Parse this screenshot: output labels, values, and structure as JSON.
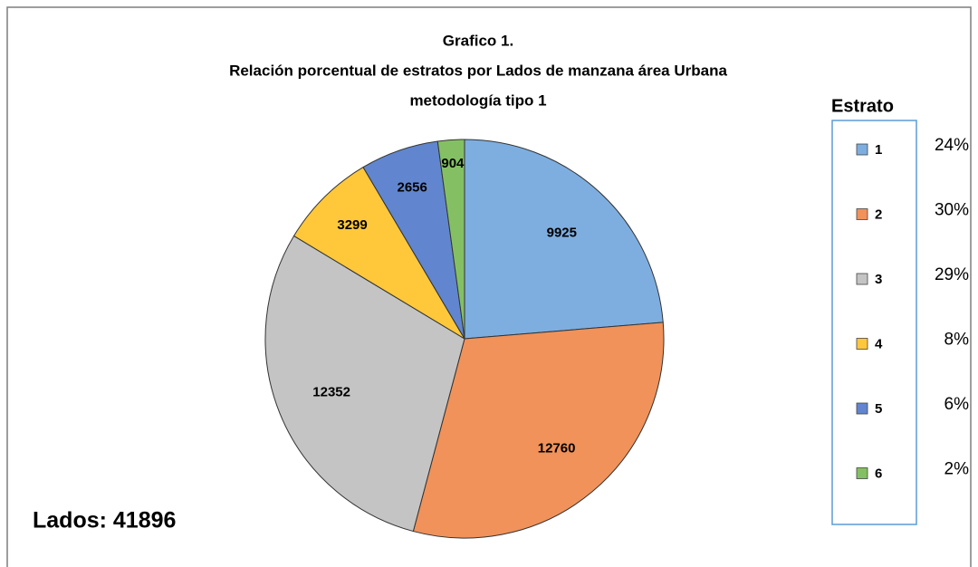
{
  "chart_data": {
    "type": "pie",
    "title": [
      "Grafico 1.",
      "Relación porcentual de estratos por Lados de manzana área  Urbana",
      "metodología tipo 1"
    ],
    "legend_title": "Estrato",
    "categories": [
      "1",
      "2",
      "3",
      "4",
      "5",
      "6"
    ],
    "values": [
      9925,
      12760,
      12352,
      3299,
      2656,
      904
    ],
    "colors": [
      "#7eaee0",
      "#f0925a",
      "#c4c4c4",
      "#ffc83a",
      "#6186cf",
      "#84c063"
    ],
    "legend_percents": [
      "24%",
      "30%",
      "29%",
      "8%",
      "6%",
      "2%"
    ],
    "annotation": "Lados:  41896"
  }
}
